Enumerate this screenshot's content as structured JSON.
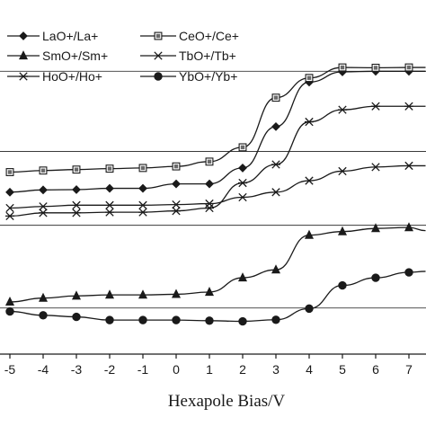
{
  "chart_data": {
    "type": "line",
    "title": "",
    "xlabel": "Hexapole Bias/V",
    "ylabel": "",
    "xlim": [
      -5.5,
      7.5
    ],
    "ylim": [
      0,
      1
    ],
    "x_ticks": [
      -5,
      -4,
      -3,
      -2,
      -1,
      0,
      1,
      2,
      3,
      4,
      5,
      6,
      7
    ],
    "grid": false,
    "legend_position": "top-left",
    "y_reference_lines": [
      0.889,
      0.637,
      0.405,
      0.145
    ],
    "x": [
      -5,
      -4,
      -3,
      -2,
      -1,
      0,
      1,
      2,
      3,
      4,
      5,
      6,
      7,
      7.5
    ],
    "series": [
      {
        "name": "LaO+/La+",
        "marker": "diamond",
        "values": [
          0.509,
          0.516,
          0.517,
          0.521,
          0.521,
          0.535,
          0.535,
          0.585,
          0.715,
          0.855,
          0.887,
          0.889,
          0.889,
          0.889
        ]
      },
      {
        "name": "CeO+/Ce+",
        "marker": "square",
        "values": [
          0.572,
          0.577,
          0.58,
          0.583,
          0.585,
          0.59,
          0.605,
          0.65,
          0.806,
          0.868,
          0.901,
          0.9,
          0.901,
          0.901
        ]
      },
      {
        "name": "SmO+/Sm+",
        "marker": "triangle",
        "values": [
          0.164,
          0.176,
          0.183,
          0.186,
          0.186,
          0.188,
          0.195,
          0.24,
          0.265,
          0.374,
          0.385,
          0.395,
          0.398,
          0.388
        ]
      },
      {
        "name": "TbO+/Tb+",
        "marker": "x",
        "values": [
          0.459,
          0.464,
          0.468,
          0.468,
          0.468,
          0.47,
          0.473,
          0.493,
          0.509,
          0.545,
          0.575,
          0.588,
          0.592,
          0.592
        ]
      },
      {
        "name": "HoO+/Ho+",
        "marker": "asterisk",
        "values": [
          0.434,
          0.444,
          0.444,
          0.446,
          0.446,
          0.45,
          0.459,
          0.538,
          0.596,
          0.73,
          0.768,
          0.779,
          0.779,
          0.779
        ]
      },
      {
        "name": "YbO+/Yb+",
        "marker": "circle",
        "values": [
          0.134,
          0.122,
          0.117,
          0.107,
          0.107,
          0.107,
          0.105,
          0.103,
          0.108,
          0.143,
          0.216,
          0.24,
          0.257,
          0.26
        ]
      }
    ]
  }
}
